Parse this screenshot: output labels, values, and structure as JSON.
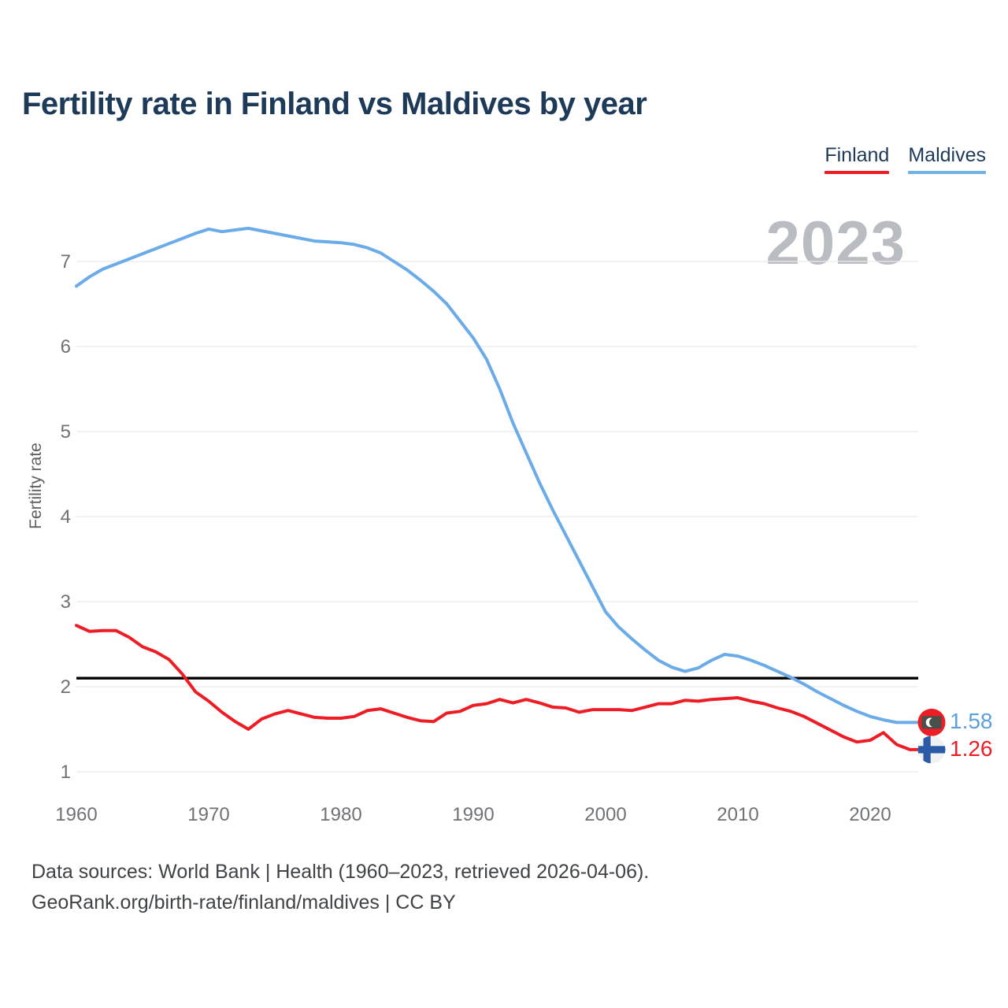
{
  "header": {
    "title": "Fertility rate in Finland vs Maldives by year"
  },
  "legend": [
    {
      "label": "Finland",
      "color": "#ee1c24"
    },
    {
      "label": "Maldives",
      "color": "#74b2e4"
    }
  ],
  "watermark": "2023",
  "footer": {
    "line1": "Data sources: World Bank | Health (1960–2023, retrieved 2026-04-06).",
    "line2": "GeoRank.org/birth-rate/finland/maldives | CC BY"
  },
  "chart_data": {
    "type": "line",
    "title": "Fertility rate in Finland vs Maldives by year",
    "xlabel": "",
    "ylabel": "Fertility rate",
    "x_start": 1960,
    "x_end": 2023,
    "xticks": [
      1960,
      1970,
      1980,
      1990,
      2000,
      2010,
      2020
    ],
    "yticks": [
      1,
      2,
      3,
      4,
      5,
      6,
      7
    ],
    "ylim": [
      1,
      7.6
    ],
    "grid": "horizontal",
    "legend_position": "top-right",
    "reference_line": {
      "value": 2.1,
      "color": "#000000"
    },
    "series": [
      {
        "name": "Maldives",
        "color": "#6aabe8",
        "end_label": "1.58",
        "end_label_color": "#5e9fdd",
        "flag": "maldives",
        "values": [
          6.71,
          6.82,
          6.91,
          6.97,
          7.03,
          7.09,
          7.15,
          7.21,
          7.27,
          7.33,
          7.38,
          7.35,
          7.37,
          7.39,
          7.36,
          7.33,
          7.3,
          7.27,
          7.24,
          7.23,
          7.22,
          7.2,
          7.16,
          7.1,
          7.0,
          6.9,
          6.78,
          6.65,
          6.5,
          6.3,
          6.1,
          5.85,
          5.5,
          5.1,
          4.75,
          4.4,
          4.08,
          3.78,
          3.48,
          3.18,
          2.88,
          2.7,
          2.56,
          2.43,
          2.31,
          2.23,
          2.18,
          2.22,
          2.31,
          2.38,
          2.36,
          2.31,
          2.25,
          2.18,
          2.11,
          2.03,
          1.94,
          1.86,
          1.78,
          1.71,
          1.65,
          1.61,
          1.58,
          1.58
        ]
      },
      {
        "name": "Finland",
        "color": "#ee1c24",
        "end_label": "1.26",
        "end_label_color": "#ee1c24",
        "flag": "finland",
        "values": [
          2.72,
          2.65,
          2.66,
          2.66,
          2.58,
          2.47,
          2.41,
          2.32,
          2.15,
          1.94,
          1.83,
          1.7,
          1.59,
          1.5,
          1.62,
          1.68,
          1.72,
          1.68,
          1.64,
          1.63,
          1.63,
          1.65,
          1.72,
          1.74,
          1.69,
          1.64,
          1.6,
          1.59,
          1.69,
          1.71,
          1.78,
          1.8,
          1.85,
          1.81,
          1.85,
          1.81,
          1.76,
          1.75,
          1.7,
          1.73,
          1.73,
          1.73,
          1.72,
          1.76,
          1.8,
          1.8,
          1.84,
          1.83,
          1.85,
          1.86,
          1.87,
          1.83,
          1.8,
          1.75,
          1.71,
          1.65,
          1.57,
          1.49,
          1.41,
          1.35,
          1.37,
          1.46,
          1.32,
          1.26
        ]
      }
    ]
  }
}
